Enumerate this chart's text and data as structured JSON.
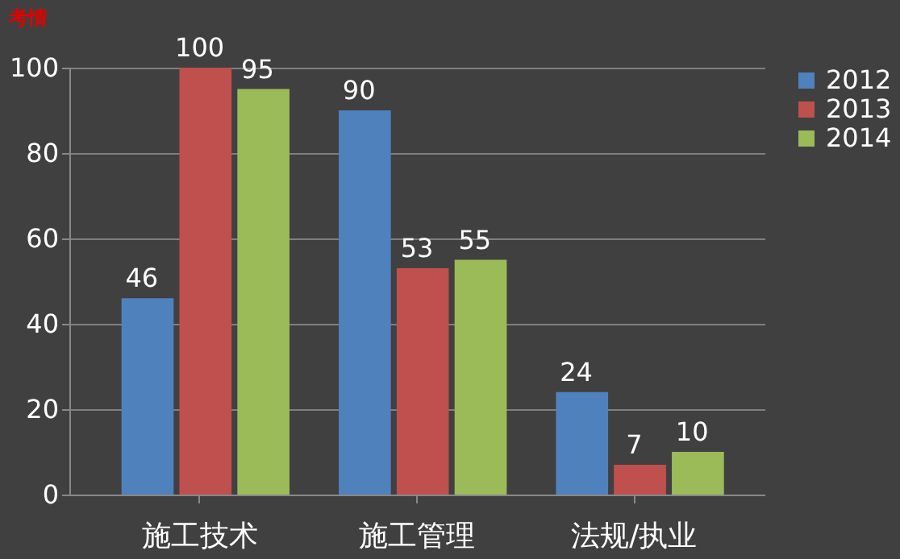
{
  "chart_data": {
    "type": "bar",
    "title": "考情",
    "categories": [
      "施工技术",
      "施工管理",
      "法规/执业"
    ],
    "series": [
      {
        "name": "2012",
        "color": "#4f81bd",
        "values": [
          46,
          90,
          24
        ]
      },
      {
        "name": "2013",
        "color": "#c0504d",
        "values": [
          100,
          53,
          7
        ]
      },
      {
        "name": "2014",
        "color": "#9bbb59",
        "values": [
          95,
          55,
          10
        ]
      }
    ],
    "ylim": [
      0,
      100
    ],
    "yticks": [
      0,
      20,
      40,
      60,
      80,
      100
    ],
    "grid": "y",
    "legend": "right",
    "data_labels": true
  }
}
